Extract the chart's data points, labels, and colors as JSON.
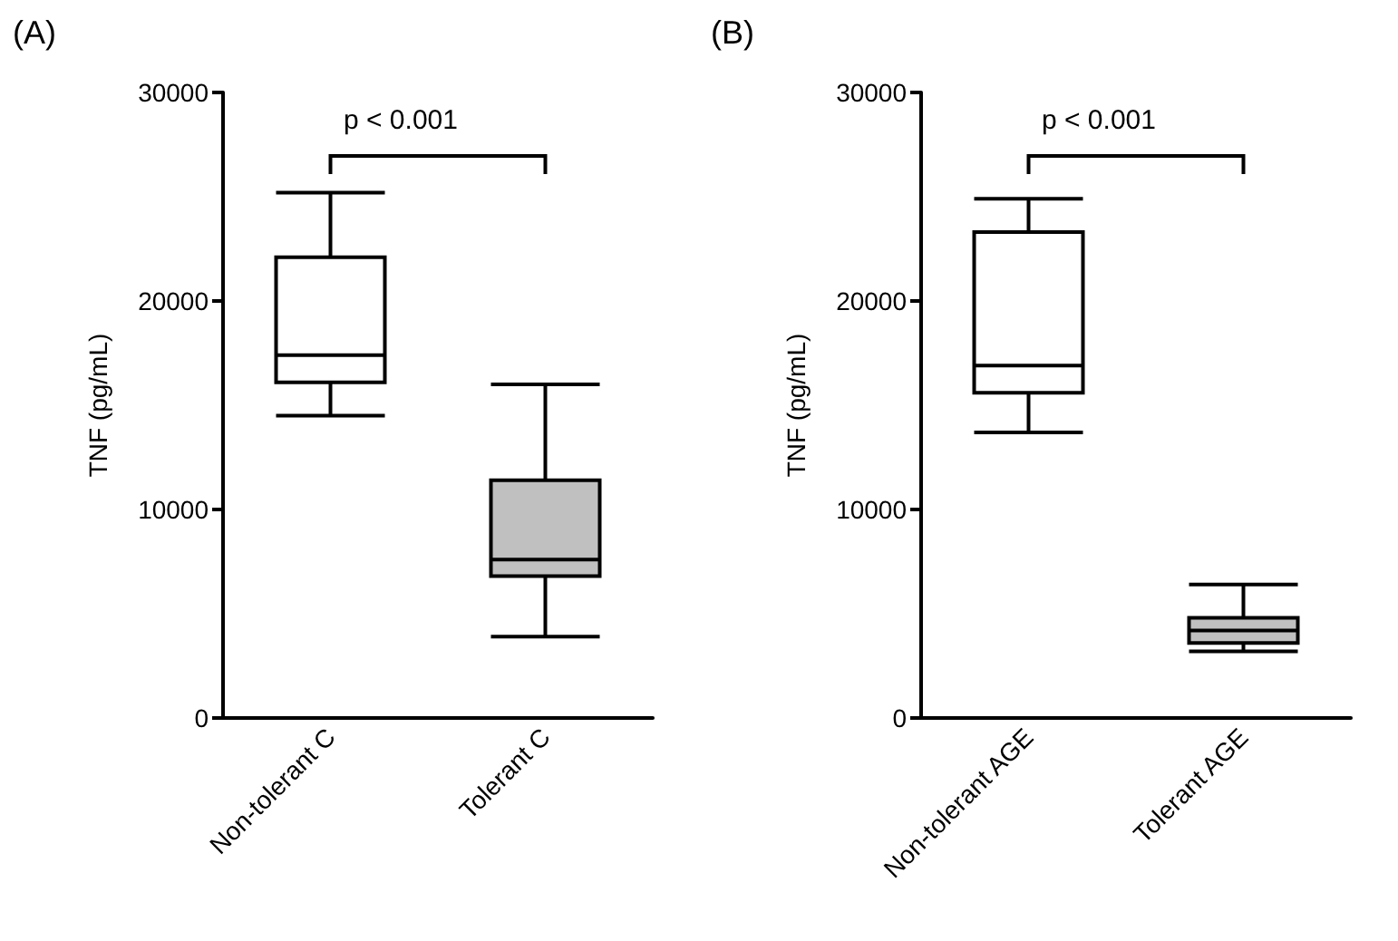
{
  "chart_data": [
    {
      "type": "box",
      "title": "(A)",
      "ylabel": "TNF (pg/mL)",
      "categories": [
        "Non-tolerant C",
        "Tolerant C"
      ],
      "boxes": [
        {
          "low": 14500,
          "q1": 16100,
          "median": 17400,
          "q3": 22100,
          "high": 25200
        },
        {
          "low": 3900,
          "q1": 6800,
          "median": 7600,
          "q3": 11400,
          "high": 16000
        }
      ],
      "colors": [
        "#ffffff",
        "#c0c0c0"
      ],
      "ylim": [
        0,
        30000
      ],
      "yticks": [
        0,
        10000,
        20000,
        30000
      ],
      "annotations": [
        "p < 0.001"
      ]
    },
    {
      "type": "box",
      "title": "(B)",
      "ylabel": "TNF (pg/mL)",
      "categories": [
        "Non-tolerant AGE",
        "Tolerant AGE"
      ],
      "boxes": [
        {
          "low": 13700,
          "q1": 15600,
          "median": 16900,
          "q3": 23300,
          "high": 24900
        },
        {
          "low": 3200,
          "q1": 3600,
          "median": 4200,
          "q3": 4800,
          "high": 6400
        }
      ],
      "colors": [
        "#ffffff",
        "#c0c0c0"
      ],
      "ylim": [
        0,
        30000
      ],
      "yticks": [
        0,
        10000,
        20000,
        30000
      ],
      "annotations": [
        "p < 0.001"
      ]
    }
  ]
}
